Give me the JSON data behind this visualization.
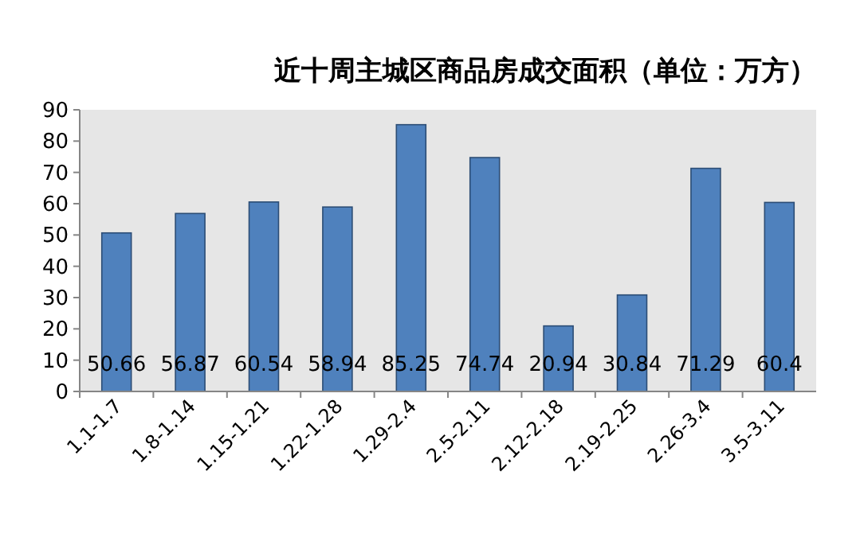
{
  "chart_data": {
    "type": "bar",
    "title": "近十周主城区商品房成交面积（单位：万方）",
    "categories": [
      "1.1-1.7",
      "1.8-1.14",
      "1.15-1.21",
      "1.22-1.28",
      "1.29-2.4",
      "2.5-2.11",
      "2.12-2.18",
      "2.19-2.25",
      "2.26-3.4",
      "3.5-3.11"
    ],
    "values": [
      50.66,
      56.87,
      60.54,
      58.94,
      85.25,
      74.74,
      20.94,
      30.84,
      71.29,
      60.4
    ],
    "color": "#4f81bd",
    "ylim": [
      0,
      90
    ],
    "yticks": [
      0,
      10,
      20,
      30,
      40,
      50,
      60,
      70,
      80,
      90
    ],
    "grid": false,
    "data_labels": true
  }
}
